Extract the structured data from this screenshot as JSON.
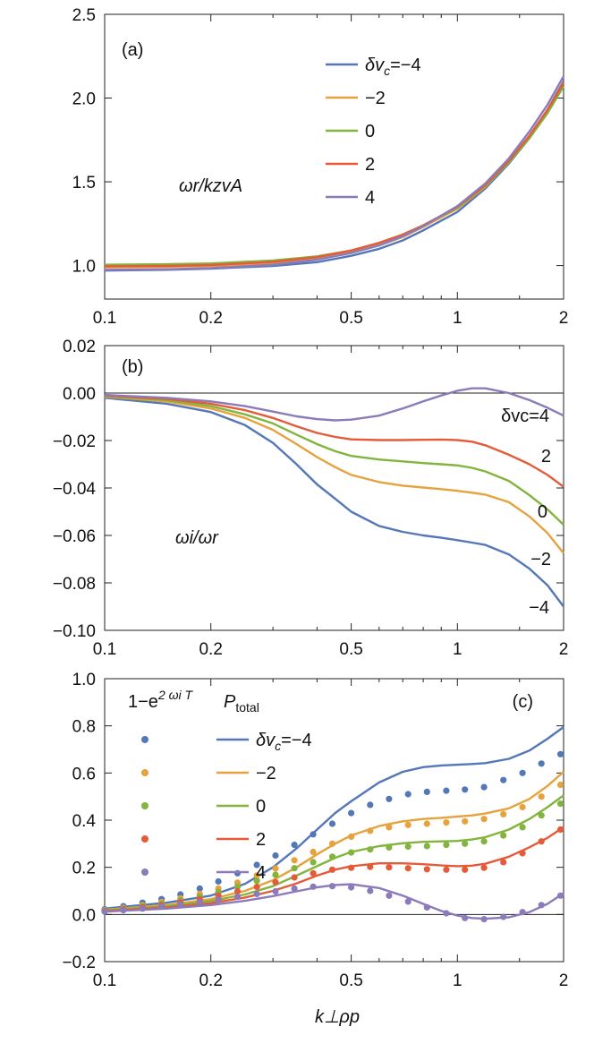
{
  "colors": [
    "#5477b8",
    "#e6a23c",
    "#82b43e",
    "#e45b3a",
    "#8c7bba"
  ],
  "xlabel": "k⊥ρp",
  "chart_data": [
    {
      "panel": "(a)",
      "type": "line",
      "xscale": "log",
      "xlim": [
        0.1,
        2
      ],
      "ylim": [
        0.8,
        2.5
      ],
      "xticks": [
        0.1,
        0.2,
        0.5,
        1,
        2
      ],
      "xtick_labels": [
        "0.1",
        "0.2",
        "0.5",
        "1",
        "2"
      ],
      "yticks": [
        1.0,
        1.5,
        2.0,
        2.5
      ],
      "ytick_labels": [
        "1.0",
        "1.5",
        "2.0",
        "2.5"
      ],
      "ylabel": "ωr/kzvA",
      "legend_title_prefix": "δv",
      "legend_title_sub": "c",
      "legend_title_suffix": "=−4",
      "legend_items": [
        "−2",
        "0",
        "2",
        "4"
      ],
      "x": [
        0.1,
        0.15,
        0.2,
        0.3,
        0.4,
        0.5,
        0.6,
        0.7,
        0.8,
        1.0,
        1.2,
        1.4,
        1.6,
        1.8,
        2.0
      ],
      "series": [
        {
          "name": "δvc=−4",
          "values": [
            0.97,
            0.975,
            0.982,
            0.997,
            1.02,
            1.058,
            1.1,
            1.15,
            1.21,
            1.32,
            1.46,
            1.61,
            1.76,
            1.93,
            2.1
          ]
        },
        {
          "name": "−2",
          "values": [
            0.99,
            0.993,
            0.997,
            1.01,
            1.04,
            1.078,
            1.12,
            1.17,
            1.23,
            1.34,
            1.47,
            1.62,
            1.77,
            1.93,
            2.09
          ]
        },
        {
          "name": "0",
          "values": [
            1.005,
            1.008,
            1.013,
            1.03,
            1.055,
            1.09,
            1.135,
            1.185,
            1.24,
            1.345,
            1.475,
            1.615,
            1.76,
            1.91,
            2.07
          ]
        },
        {
          "name": "2",
          "values": [
            0.995,
            0.998,
            1.003,
            1.022,
            1.05,
            1.09,
            1.135,
            1.185,
            1.24,
            1.35,
            1.48,
            1.625,
            1.775,
            1.93,
            2.09
          ]
        },
        {
          "name": "4",
          "values": [
            0.975,
            0.978,
            0.985,
            1.005,
            1.035,
            1.075,
            1.12,
            1.175,
            1.235,
            1.355,
            1.49,
            1.64,
            1.8,
            1.96,
            2.13
          ]
        }
      ]
    },
    {
      "panel": "(b)",
      "type": "line",
      "xscale": "log",
      "xlim": [
        0.1,
        2
      ],
      "ylim": [
        -0.1,
        0.02
      ],
      "xticks": [
        0.1,
        0.2,
        0.5,
        1,
        2
      ],
      "xtick_labels": [
        "0.1",
        "0.2",
        "0.5",
        "1",
        "2"
      ],
      "yticks": [
        0.02,
        0.0,
        -0.02,
        -0.04,
        -0.06,
        -0.08,
        -0.1
      ],
      "ytick_labels": [
        "0.02",
        "0.00",
        "−0.02",
        "−0.04",
        "−0.06",
        "−0.08",
        "−0.10"
      ],
      "ylabel": "ωi/ωr",
      "series_labels": [
        "−4",
        "−2",
        "0",
        "2",
        "δvc=4"
      ],
      "x": [
        0.1,
        0.15,
        0.2,
        0.25,
        0.3,
        0.35,
        0.4,
        0.45,
        0.5,
        0.6,
        0.7,
        0.8,
        0.9,
        1.0,
        1.1,
        1.2,
        1.4,
        1.6,
        1.8,
        2.0
      ],
      "series": [
        {
          "name": "−4",
          "values": [
            -0.002,
            -0.0045,
            -0.008,
            -0.0135,
            -0.021,
            -0.03,
            -0.0385,
            -0.0445,
            -0.05,
            -0.056,
            -0.0585,
            -0.06,
            -0.061,
            -0.062,
            -0.063,
            -0.064,
            -0.068,
            -0.074,
            -0.081,
            -0.09
          ]
        },
        {
          "name": "−2",
          "values": [
            -0.0015,
            -0.0035,
            -0.0065,
            -0.0105,
            -0.0155,
            -0.0215,
            -0.027,
            -0.0312,
            -0.0345,
            -0.0375,
            -0.039,
            -0.0398,
            -0.0405,
            -0.0412,
            -0.042,
            -0.0428,
            -0.046,
            -0.052,
            -0.059,
            -0.0675
          ]
        },
        {
          "name": "0",
          "values": [
            -0.0012,
            -0.003,
            -0.0055,
            -0.009,
            -0.0128,
            -0.0175,
            -0.0215,
            -0.0245,
            -0.0265,
            -0.028,
            -0.0288,
            -0.0295,
            -0.03,
            -0.0305,
            -0.0315,
            -0.033,
            -0.037,
            -0.043,
            -0.049,
            -0.0555
          ]
        },
        {
          "name": "2",
          "values": [
            -0.001,
            -0.0025,
            -0.0045,
            -0.0072,
            -0.0105,
            -0.014,
            -0.0168,
            -0.0185,
            -0.0195,
            -0.0198,
            -0.0198,
            -0.0197,
            -0.0196,
            -0.0198,
            -0.0205,
            -0.022,
            -0.026,
            -0.03,
            -0.0345,
            -0.0395
          ]
        },
        {
          "name": "δvc=4",
          "values": [
            -0.0008,
            -0.002,
            -0.0035,
            -0.0055,
            -0.0078,
            -0.0098,
            -0.011,
            -0.0115,
            -0.0112,
            -0.0095,
            -0.0065,
            -0.0035,
            -0.001,
            0.001,
            0.002,
            0.002,
            0.0,
            -0.003,
            -0.0062,
            -0.0095
          ]
        }
      ]
    },
    {
      "panel": "(c)",
      "type": "line+scatter",
      "xscale": "log",
      "xlim": [
        0.1,
        2
      ],
      "ylim": [
        -0.2,
        1.0
      ],
      "xticks": [
        0.1,
        0.2,
        0.5,
        1,
        2
      ],
      "xtick_labels": [
        "0.1",
        "0.2",
        "0.5",
        "1",
        "2"
      ],
      "yticks": [
        1.0,
        0.8,
        0.6,
        0.4,
        0.2,
        0.0,
        -0.2
      ],
      "ytick_labels": [
        "1.0",
        "0.8",
        "0.6",
        "0.4",
        "0.2",
        "0.0",
        "−0.2"
      ],
      "header_points_base": "1−e",
      "header_points_exp": "2 ωi T",
      "header_lines_base": "P",
      "header_lines_sub": "total",
      "legend_title_prefix": "δv",
      "legend_title_sub": "c",
      "legend_title_suffix": "=−4",
      "legend_items": [
        "−2",
        "0",
        "2",
        "4"
      ],
      "x_lines": [
        0.1,
        0.15,
        0.2,
        0.25,
        0.3,
        0.35,
        0.4,
        0.45,
        0.5,
        0.6,
        0.7,
        0.8,
        0.9,
        1.0,
        1.1,
        1.2,
        1.4,
        1.6,
        1.8,
        2.0
      ],
      "lines": [
        {
          "name": "δvc=−4",
          "values": [
            0.025,
            0.05,
            0.08,
            0.13,
            0.2,
            0.28,
            0.36,
            0.43,
            0.48,
            0.56,
            0.605,
            0.625,
            0.632,
            0.635,
            0.638,
            0.642,
            0.66,
            0.695,
            0.745,
            0.795
          ]
        },
        {
          "name": "−2",
          "values": [
            0.02,
            0.04,
            0.065,
            0.1,
            0.145,
            0.2,
            0.255,
            0.3,
            0.335,
            0.375,
            0.395,
            0.405,
            0.41,
            0.415,
            0.42,
            0.428,
            0.45,
            0.49,
            0.545,
            0.605
          ]
        },
        {
          "name": "0",
          "values": [
            0.018,
            0.035,
            0.057,
            0.085,
            0.12,
            0.165,
            0.205,
            0.24,
            0.265,
            0.29,
            0.302,
            0.308,
            0.31,
            0.312,
            0.318,
            0.328,
            0.36,
            0.405,
            0.455,
            0.505
          ]
        },
        {
          "name": "2",
          "values": [
            0.015,
            0.03,
            0.048,
            0.072,
            0.1,
            0.132,
            0.165,
            0.19,
            0.205,
            0.217,
            0.217,
            0.213,
            0.208,
            0.205,
            0.207,
            0.215,
            0.245,
            0.285,
            0.325,
            0.37
          ]
        },
        {
          "name": "4",
          "values": [
            0.012,
            0.025,
            0.04,
            0.058,
            0.078,
            0.098,
            0.115,
            0.125,
            0.128,
            0.112,
            0.08,
            0.045,
            0.015,
            -0.005,
            -0.015,
            -0.018,
            -0.012,
            0.01,
            0.045,
            0.09
          ]
        }
      ],
      "x_points": [
        0.1,
        0.113,
        0.128,
        0.145,
        0.164,
        0.186,
        0.21,
        0.238,
        0.27,
        0.305,
        0.345,
        0.39,
        0.442,
        0.5,
        0.566,
        0.64,
        0.725,
        0.82,
        0.93,
        1.05,
        1.19,
        1.35,
        1.53,
        1.73,
        1.96
      ],
      "points": [
        {
          "name": "δvc=−4",
          "values": [
            0.022,
            0.035,
            0.05,
            0.065,
            0.085,
            0.11,
            0.14,
            0.175,
            0.21,
            0.25,
            0.295,
            0.34,
            0.385,
            0.43,
            0.465,
            0.49,
            0.51,
            0.52,
            0.525,
            0.53,
            0.54,
            0.57,
            0.6,
            0.64,
            0.68
          ]
        },
        {
          "name": "−2",
          "values": [
            0.018,
            0.028,
            0.04,
            0.053,
            0.068,
            0.087,
            0.11,
            0.135,
            0.165,
            0.195,
            0.23,
            0.265,
            0.3,
            0.33,
            0.355,
            0.37,
            0.38,
            0.385,
            0.39,
            0.395,
            0.405,
            0.425,
            0.455,
            0.5,
            0.55
          ]
        },
        {
          "name": "0",
          "values": [
            0.016,
            0.025,
            0.035,
            0.046,
            0.06,
            0.076,
            0.095,
            0.118,
            0.143,
            0.168,
            0.196,
            0.222,
            0.245,
            0.263,
            0.276,
            0.284,
            0.288,
            0.29,
            0.295,
            0.3,
            0.31,
            0.335,
            0.37,
            0.42,
            0.47
          ]
        },
        {
          "name": "2",
          "values": [
            0.014,
            0.022,
            0.03,
            0.04,
            0.052,
            0.065,
            0.08,
            0.098,
            0.117,
            0.137,
            0.157,
            0.175,
            0.19,
            0.198,
            0.202,
            0.2,
            0.196,
            0.192,
            0.19,
            0.19,
            0.198,
            0.222,
            0.26,
            0.31,
            0.36
          ]
        },
        {
          "name": "4",
          "values": [
            0.012,
            0.018,
            0.025,
            0.033,
            0.042,
            0.052,
            0.063,
            0.075,
            0.087,
            0.098,
            0.11,
            0.118,
            0.12,
            0.115,
            0.1,
            0.08,
            0.055,
            0.03,
            0.005,
            -0.015,
            -0.02,
            -0.01,
            0.01,
            0.04,
            0.08
          ]
        }
      ]
    }
  ]
}
